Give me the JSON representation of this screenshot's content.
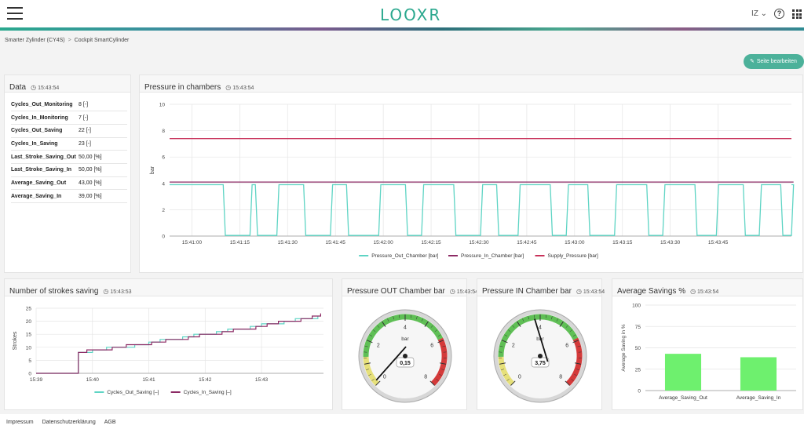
{
  "header": {
    "logo": "LOOXR",
    "user": "IZ ⌄",
    "help": "?"
  },
  "breadcrumb": {
    "items": [
      "Smarter Zylinder (CY4S)",
      "Cockpit SmartCylinder"
    ]
  },
  "toolbar": {
    "edit_label": "Seite bearbeiten",
    "edit_icon": "pencil-icon"
  },
  "data_panel": {
    "title": "Data",
    "time": "15:43:54",
    "rows": [
      {
        "k": "Cycles_Out_Monitoring",
        "v": "8 [-]"
      },
      {
        "k": "Cycles_In_Monitoring",
        "v": "7 [-]"
      },
      {
        "k": "Cycles_Out_Saving",
        "v": "22 [-]"
      },
      {
        "k": "Cycles_In_Saving",
        "v": "23 [-]"
      },
      {
        "k": "Last_Stroke_Saving_Out",
        "v": "50,00 [%]"
      },
      {
        "k": "Last_Stroke_Saving_In",
        "v": "50,00 [%]"
      },
      {
        "k": "Average_Saving_Out",
        "v": "43,00 [%]"
      },
      {
        "k": "Average_Saving_In",
        "v": "39,00 [%]"
      }
    ]
  },
  "pressure_panel": {
    "title": "Pressure in chambers",
    "time": "15:43:54"
  },
  "strokes_panel": {
    "title": "Number of strokes saving",
    "time": "15:43:53"
  },
  "out_panel": {
    "title": "Pressure OUT Chamber bar",
    "time": "15:43:54"
  },
  "in_panel": {
    "title": "Pressure IN Chamber bar",
    "time": "15:43:54"
  },
  "avg_panel": {
    "title": "Average Savings %",
    "time": "15:43:54"
  },
  "footer": {
    "links": [
      "Impressum",
      "Datenschutzerklärung",
      "AGB"
    ]
  },
  "colors": {
    "accent": "#4cb19a",
    "out": "#5ed4c4",
    "in": "#8c2a64",
    "supply": "#c8325a",
    "bar": "#6ef06e"
  },
  "chart_data": [
    {
      "id": "pressure",
      "type": "line",
      "ylabel": "bar",
      "ylim": [
        0,
        10
      ],
      "yticks": [
        0,
        2,
        4,
        6,
        8,
        10
      ],
      "xlabels": [
        "15:41:00",
        "15:41:15",
        "15:41:30",
        "15:41:45",
        "15:42:00",
        "15:42:15",
        "15:42:30",
        "15:42:45",
        "15:43:00",
        "15:43:15",
        "15:43:30",
        "15:43:45"
      ],
      "xstart_s": 53,
      "xend_s": 169,
      "xticks_s": [
        60,
        75,
        90,
        105,
        120,
        135,
        150,
        165,
        180,
        195,
        210,
        225
      ],
      "grid": true,
      "legend": "bottom",
      "series": [
        {
          "name": "Pressure_Out_Chamber [bar]",
          "pattern": {
            "high": 3.9,
            "low": 0.05,
            "cycles": [
              [
                53,
                60,
                4
              ],
              [
                63,
                68,
                1
              ],
              [
                69,
                73,
                1
              ],
              [
                78,
                83,
                1
              ],
              [
                86,
                92,
                1
              ],
              [
                97,
                100,
                1
              ],
              [
                106,
                111,
                1
              ],
              [
                114,
                118,
                1
              ],
              [
                124,
                127,
                1
              ],
              [
                131,
                136,
                1
              ],
              [
                142,
                145,
                1
              ],
              [
                151,
                155,
                1
              ],
              [
                160,
                163,
                1
              ],
              [
                167,
                169,
                1
              ]
            ]
          }
        },
        {
          "name": "Pressure_In_Chamber [bar]",
          "pattern": {
            "high": 4.1,
            "low": 0.05,
            "cycles": [
              [
                55,
                61,
                4
              ],
              [
                66,
                71,
                4
              ],
              [
                75,
                82,
                4
              ],
              [
                84,
                90,
                4
              ],
              [
                93,
                99,
                4
              ],
              [
                102,
                109,
                4
              ],
              [
                111,
                117,
                4
              ],
              [
                120,
                126,
                4
              ],
              [
                129,
                135,
                4
              ],
              [
                138,
                144,
                4
              ],
              [
                147,
                153,
                4
              ],
              [
                156,
                162,
                4
              ],
              [
                165,
                169,
                4
              ]
            ]
          }
        },
        {
          "name": "Supply_Pressure [bar]",
          "value": 7.4
        }
      ]
    },
    {
      "id": "strokes",
      "type": "line",
      "ylabel": "Strokes",
      "ylim": [
        0,
        25
      ],
      "yticks": [
        0,
        5,
        10,
        15,
        20,
        25
      ],
      "xlabels": [
        "15:39",
        "15:40",
        "15:41",
        "15:42",
        "15:43"
      ],
      "xlim": [
        39,
        44.1
      ],
      "grid": true,
      "legend": "bottom",
      "series": [
        {
          "name": "Cycles_Out_Saving [–]",
          "x": [
            39.0,
            39.75,
            39.75,
            40.0,
            40.25,
            40.5,
            40.75,
            41.0,
            41.2,
            41.4,
            41.6,
            41.8,
            42.0,
            42.2,
            42.4,
            42.6,
            42.8,
            43.0,
            43.2,
            43.4,
            43.6,
            43.8,
            44.0
          ],
          "y": [
            0,
            0,
            8,
            9,
            10,
            10,
            11,
            12,
            13,
            13,
            14,
            15,
            15,
            16,
            17,
            17,
            18,
            19,
            19,
            20,
            21,
            21,
            22
          ]
        },
        {
          "name": "Cycles_In_Saving [–]",
          "x": [
            39.0,
            39.75,
            39.75,
            39.9,
            40.15,
            40.35,
            40.6,
            40.85,
            41.05,
            41.3,
            41.5,
            41.7,
            41.9,
            42.1,
            42.3,
            42.5,
            42.7,
            42.9,
            43.1,
            43.3,
            43.5,
            43.7,
            43.9,
            44.05
          ],
          "y": [
            0,
            0,
            8,
            9,
            9,
            10,
            11,
            11,
            12,
            13,
            13,
            14,
            15,
            15,
            16,
            17,
            17,
            18,
            19,
            20,
            20,
            21,
            22,
            23
          ]
        }
      ]
    },
    {
      "id": "gauge_out",
      "type": "gauge",
      "value": 0.15,
      "value_label": "0,15",
      "unit": "bar",
      "min": 0,
      "max": 8,
      "ticks": [
        0,
        2,
        4,
        6,
        8
      ]
    },
    {
      "id": "gauge_in",
      "type": "gauge",
      "value": 3.75,
      "value_label": "3,75",
      "unit": "bar",
      "min": 0,
      "max": 8,
      "ticks": [
        0,
        2,
        4,
        6,
        8
      ]
    },
    {
      "id": "avg",
      "type": "bar",
      "categories": [
        "Average_Saving_Out",
        "Average_Saving_In"
      ],
      "values": [
        43,
        39
      ],
      "ylabel": "Average Saving in %",
      "ylim": [
        0,
        100
      ],
      "yticks": [
        0,
        25,
        50,
        75,
        100
      ]
    }
  ]
}
